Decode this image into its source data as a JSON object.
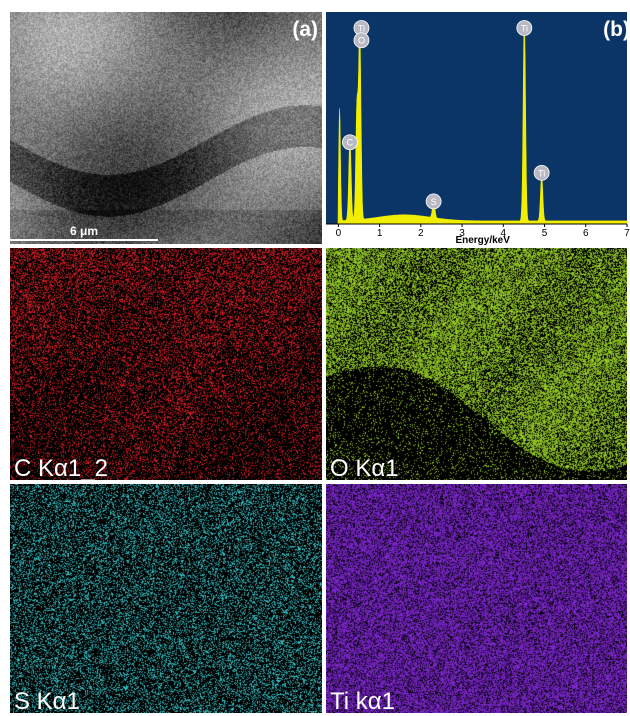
{
  "panels": {
    "sem": {
      "letter": "(a)",
      "scale_label": "6 μm"
    },
    "eds": {
      "letter": "(b)"
    },
    "c_map": {
      "label": "C Kα1_2",
      "color": "#e8202a"
    },
    "o_map": {
      "label": "O Kα1",
      "color": "#a6e22a"
    },
    "s_map": {
      "label": "S Kα1",
      "color": "#3ad2d8"
    },
    "ti_map": {
      "label": "Ti kα1",
      "color": "#8a2be2"
    }
  },
  "chart_data": {
    "type": "line",
    "xlabel": "Energy/keV",
    "xlim": [
      -0.3,
      7
    ],
    "x_ticks": [
      "0",
      "1",
      "2",
      "3",
      "4",
      "5",
      "6",
      "7"
    ],
    "background_color": "#0b3566",
    "fill_color": "#f2ee00",
    "peaks": [
      {
        "element": "C",
        "energy": 0.28,
        "height": 0.4
      },
      {
        "element": "Ti",
        "energy": 0.45,
        "height": 0.55
      },
      {
        "element": "O",
        "energy": 0.52,
        "height": 0.93
      },
      {
        "element": "S",
        "energy": 2.31,
        "height": 0.09
      },
      {
        "element": "Ti",
        "energy": 4.51,
        "height": 1.0
      },
      {
        "element": "Ti",
        "energy": 4.93,
        "height": 0.22
      }
    ],
    "labels": [
      {
        "text": "Ti",
        "energy": 0.56,
        "height": 1.0
      },
      {
        "text": "O",
        "energy": 0.56,
        "height": 0.94
      },
      {
        "text": "C",
        "energy": 0.28,
        "height": 0.44
      },
      {
        "text": "S",
        "energy": 2.31,
        "height": 0.15
      },
      {
        "text": "Ti",
        "energy": 4.51,
        "height": 1.0
      },
      {
        "text": "Ti",
        "energy": 4.93,
        "height": 0.29
      }
    ]
  }
}
